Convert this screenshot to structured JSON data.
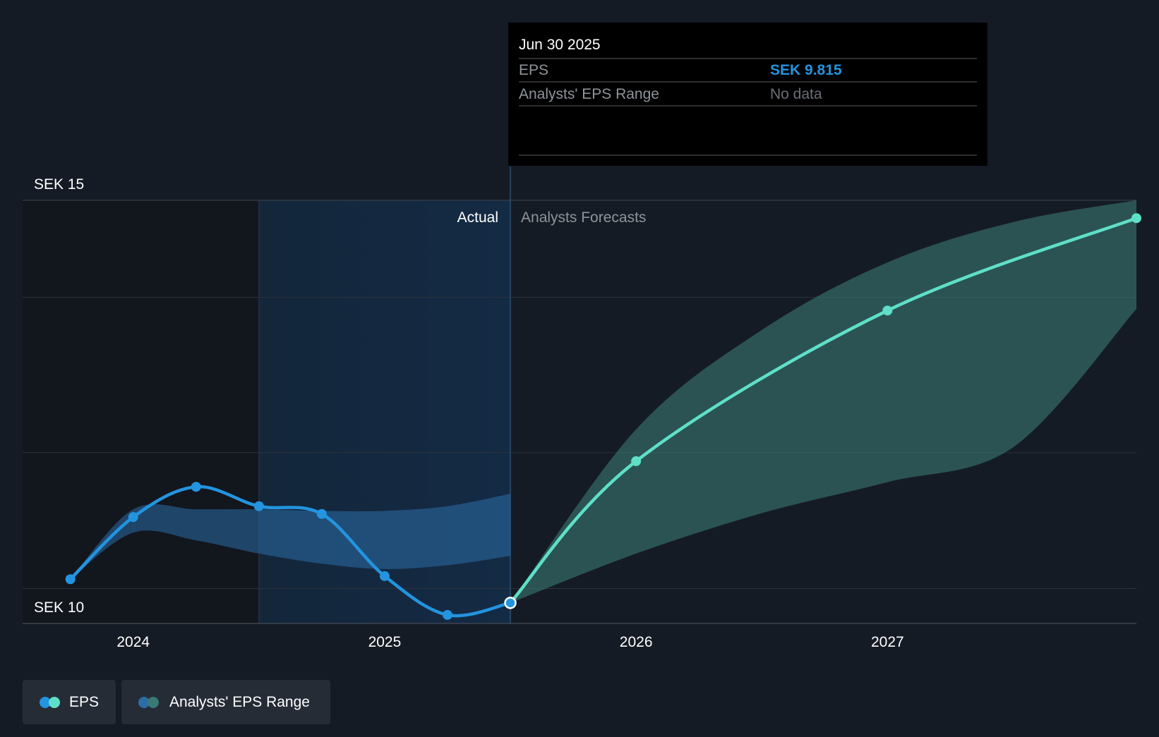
{
  "chart_data": {
    "type": "line",
    "currency": "SEK",
    "y_ticks": [
      {
        "value": 15,
        "label": "SEK 15"
      },
      {
        "value": 10,
        "label": "SEK 10"
      }
    ],
    "ylim": [
      9.55,
      15.0
    ],
    "x_ticks": [
      {
        "value": 2024,
        "label": "2024"
      },
      {
        "value": 2025,
        "label": "2025"
      },
      {
        "value": 2026,
        "label": "2026"
      },
      {
        "value": 2027,
        "label": "2027"
      }
    ],
    "xlim": [
      2023.56,
      2027.99
    ],
    "region_labels": {
      "actual": "Actual",
      "forecast": "Analysts Forecasts"
    },
    "divider_x": 2025.5,
    "past_band_start_x": 2024.5,
    "series": [
      {
        "name": "EPS",
        "color": "#2394df",
        "points": [
          {
            "x": 2023.75,
            "y": 10.12
          },
          {
            "x": 2024.0,
            "y": 10.92
          },
          {
            "x": 2024.25,
            "y": 11.31
          },
          {
            "x": 2024.5,
            "y": 11.06
          },
          {
            "x": 2024.75,
            "y": 10.96
          },
          {
            "x": 2025.0,
            "y": 10.16
          },
          {
            "x": 2025.25,
            "y": 9.66
          },
          {
            "x": 2025.5,
            "y": 9.815
          }
        ]
      },
      {
        "name": "EPS",
        "color": "#5ee0c8",
        "points": [
          {
            "x": 2025.5,
            "y": 9.815
          },
          {
            "x": 2026.0,
            "y": 11.64
          },
          {
            "x": 2027.0,
            "y": 13.58
          },
          {
            "x": 2027.99,
            "y": 14.77
          }
        ]
      }
    ],
    "ranges": [
      {
        "name": "Analysts' EPS Range",
        "color": "#2a6ea8",
        "x": [
          2023.75,
          2024.0,
          2024.25,
          2024.5,
          2024.75,
          2025.0,
          2025.25,
          2025.5
        ],
        "low": [
          10.12,
          10.72,
          10.62,
          10.45,
          10.32,
          10.25,
          10.3,
          10.42
        ],
        "high": [
          10.12,
          11.02,
          11.02,
          11.02,
          11.0,
          11.0,
          11.06,
          11.22
        ]
      },
      {
        "name": "Analysts' EPS Range",
        "color": "#3a7a74",
        "x": [
          2025.5,
          2026.0,
          2026.5,
          2027.0,
          2027.5,
          2027.99
        ],
        "low": [
          9.815,
          10.45,
          10.97,
          11.37,
          11.82,
          13.6
        ],
        "high": [
          9.815,
          12.05,
          13.33,
          14.2,
          14.72,
          15.0
        ]
      }
    ],
    "tooltip": {
      "date": "Jun 30 2025",
      "rows": [
        {
          "label": "EPS",
          "value": "SEK 9.815",
          "value_color": "#2394df"
        },
        {
          "label": "Analysts' EPS Range",
          "value": "No data",
          "value_color": "#6b7078"
        }
      ]
    },
    "legend": [
      {
        "label": "EPS",
        "colors": [
          "#2394df",
          "#5ee0c8"
        ]
      },
      {
        "label": "Analysts' EPS Range",
        "colors": [
          "#2a6ea8",
          "#3a7a74"
        ]
      }
    ]
  }
}
